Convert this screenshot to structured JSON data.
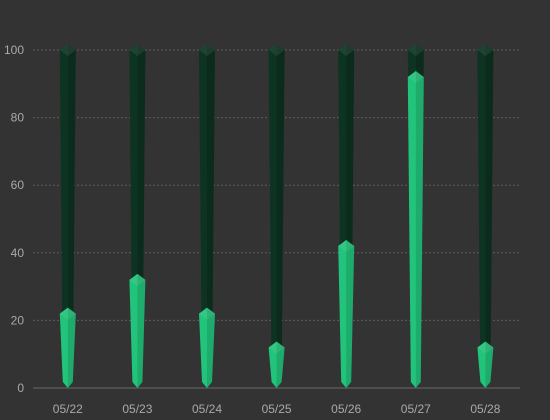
{
  "chart_data": {
    "type": "bar",
    "categories": [
      "05/22",
      "05/23",
      "05/24",
      "05/25",
      "05/26",
      "05/27",
      "05/28"
    ],
    "series": [
      {
        "values": [
          100,
          100,
          100,
          100,
          100,
          100,
          100
        ]
      },
      {
        "values": [
          22,
          32,
          22,
          12,
          42,
          92,
          12
        ]
      }
    ],
    "y_ticks": [
      "0",
      "20",
      "40",
      "60",
      "80",
      "100"
    ],
    "ylim": [
      0,
      100
    ],
    "grid": true,
    "legend": "none"
  },
  "colors": {
    "background": "#333333",
    "background_bar": "#0d3322",
    "value_bar": "#21c47a"
  }
}
